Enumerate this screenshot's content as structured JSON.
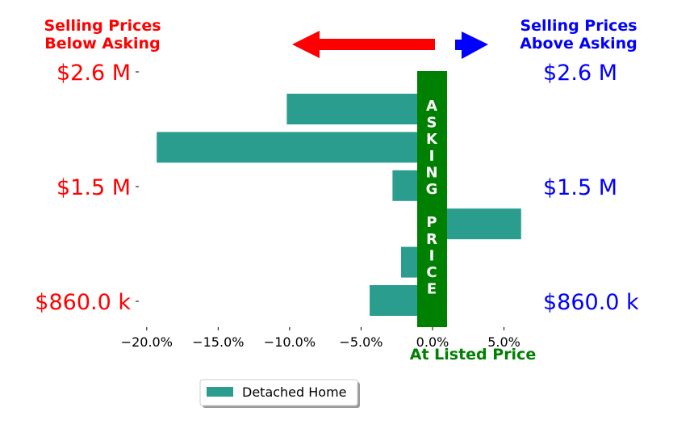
{
  "header": {
    "left_line1": "Selling Prices",
    "left_line2": "Below Asking",
    "right_line1": "Selling Prices",
    "right_line2": "Above Asking"
  },
  "colors": {
    "bar": "#2a9d8f",
    "asking_band": "#008000",
    "left": "#ff0000",
    "right": "#0000ff",
    "axis_text": "#000000"
  },
  "asking_band": {
    "letters": [
      "A",
      "S",
      "K",
      "I",
      "N",
      "G",
      "",
      "P",
      "R",
      "I",
      "C",
      "E"
    ]
  },
  "listed_label": "At Listed Price",
  "legend": {
    "label": "Detached Home"
  },
  "chart_data": {
    "type": "bar",
    "orientation": "horizontal",
    "x_unit": "percent difference of selling price vs. asking price",
    "xlim": [
      -0.2,
      0.06
    ],
    "x_ticks": [
      {
        "value": -0.2,
        "label": "−20.0%"
      },
      {
        "value": -0.15,
        "label": "−15.0%"
      },
      {
        "value": -0.1,
        "label": "−10.0%"
      },
      {
        "value": -0.05,
        "label": "−5.0%"
      },
      {
        "value": 0.0,
        "label": "0.0%"
      },
      {
        "value": 0.05,
        "label": "5.0%"
      }
    ],
    "y_tick_labels": [
      "$2.6 M",
      "$1.5 M",
      "$860.0 k"
    ],
    "series": [
      {
        "name": "Detached Home",
        "values": [
          -0.102,
          -0.193,
          -0.028,
          0.062,
          -0.022,
          -0.044
        ]
      }
    ]
  }
}
